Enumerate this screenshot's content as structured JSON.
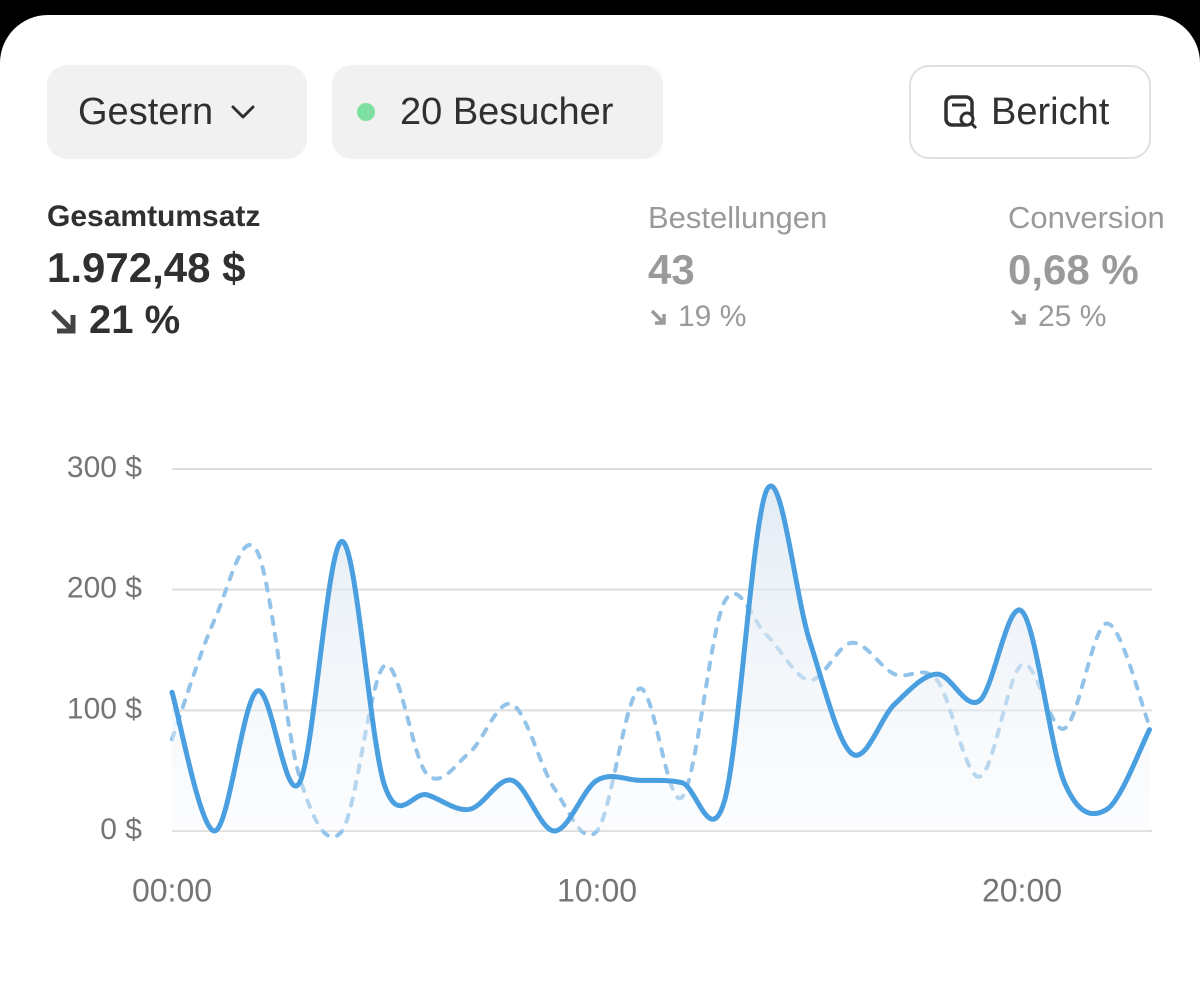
{
  "filters": [
    {
      "label": "Gestern"
    },
    {
      "label": "20 Besucher"
    },
    {
      "label": "Bericht"
    }
  ],
  "metrics": [
    {
      "label": "Gesamtumsatz",
      "value": "1.972,48 $",
      "change": "21 %"
    },
    {
      "label": "Bestellungen",
      "value": "43",
      "change": "19 %"
    },
    {
      "label": "Conversion",
      "value": "0,68 %",
      "change": "25 %"
    }
  ],
  "chart_data": {
    "type": "line",
    "categories": [
      "00:00",
      null,
      null,
      null,
      null,
      null,
      null,
      null,
      null,
      null,
      "10:00",
      null,
      null,
      null,
      null,
      null,
      null,
      null,
      null,
      null,
      "20:00",
      null,
      null,
      null
    ],
    "series": [
      {
        "color": "#4a9fe0",
        "style": "solid",
        "area": true,
        "values": [
          115,
          0,
          116,
          40,
          240,
          38,
          30,
          18,
          42,
          0,
          42,
          42,
          40,
          25,
          283,
          158,
          64,
          105,
          130,
          108,
          182,
          40,
          18,
          84
        ]
      },
      {
        "color": "#93c3e8",
        "style": "dashed",
        "values": [
          76,
          175,
          232,
          45,
          0,
          137,
          47,
          65,
          105,
          35,
          0,
          118,
          28,
          190,
          162,
          125,
          156,
          130,
          125,
          45,
          138,
          85,
          172,
          87
        ]
      }
    ],
    "ylim": [
      0,
      300
    ],
    "yticks": [
      {
        "value": 0,
        "label": "0 $"
      },
      {
        "value": 100,
        "label": "100 $"
      },
      {
        "value": 200,
        "label": "200 $"
      },
      {
        "value": 300,
        "label": "300 $"
      }
    ],
    "grid": true
  }
}
